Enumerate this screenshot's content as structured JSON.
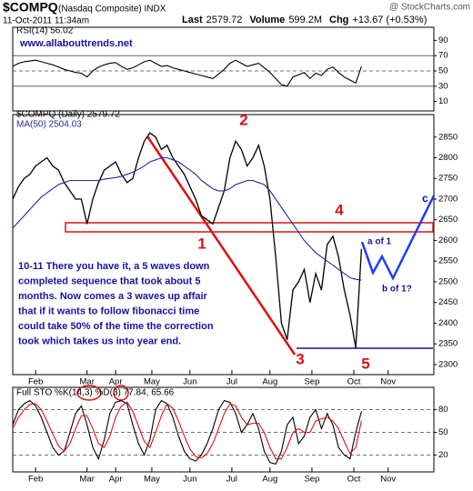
{
  "header": {
    "symbol": "$COMPQ",
    "name": "(Nasdaq Composite) INDX",
    "date": "11-Oct-2011 11:34am",
    "credit": "@ StockCharts.com",
    "stats": [
      {
        "label": "Last",
        "value": "2579.72"
      },
      {
        "label": "Volume",
        "value": "599.2M"
      },
      {
        "label": "Chg",
        "value": "+13.67 (+0.53%)"
      }
    ]
  },
  "annotations": {
    "url": "www.allabouttrends.net",
    "waves": [
      "1",
      "2",
      "3",
      "4",
      "5"
    ],
    "projection": [
      "a of 1",
      "b of 1?",
      "c"
    ],
    "commentary": [
      "10-11 There you have it, a 5 waves down",
      "completed sequence that took about 5",
      "months. Now comes a 3 waves up affair",
      "that if it wants to follow fibonacci time",
      "could take 50% of the time the correction",
      "took which takes us into year end."
    ]
  },
  "chart_data": [
    {
      "type": "line",
      "panel": "rsi",
      "legend": [
        "RSI(14) 56.02"
      ],
      "x": [
        0,
        3,
        6,
        9,
        12,
        15,
        18,
        21,
        24,
        27,
        30,
        33,
        36,
        39,
        42,
        45,
        48,
        51,
        54,
        57,
        60,
        63,
        66,
        69,
        72,
        75,
        78,
        81,
        84,
        87,
        90,
        93,
        96,
        99,
        102,
        105,
        108,
        111,
        114,
        117,
        120,
        123,
        126,
        129,
        132,
        135,
        138,
        141,
        144,
        147,
        150,
        153,
        156,
        159,
        162,
        165,
        168,
        171,
        174,
        177,
        180,
        183
      ],
      "xlim": [
        0,
        221
      ],
      "ylim": [
        0,
        100
      ],
      "yticks": [
        90,
        70,
        50,
        30,
        10
      ],
      "hlines": [
        70,
        50,
        30
      ],
      "series": [
        {
          "name": "RSI(14)",
          "color": "#000000",
          "values": [
            56,
            60,
            62,
            63,
            64,
            62,
            60,
            58,
            55,
            52,
            50,
            48,
            47,
            42,
            50,
            55,
            58,
            60,
            61,
            56,
            52,
            54,
            58,
            62,
            64,
            60,
            56,
            57,
            54,
            52,
            50,
            48,
            46,
            44,
            42,
            40,
            46,
            52,
            60,
            64,
            60,
            56,
            58,
            60,
            54,
            48,
            40,
            32,
            30,
            42,
            45,
            48,
            40,
            47,
            44,
            52,
            55,
            48,
            42,
            38,
            34,
            56.02
          ]
        }
      ]
    },
    {
      "type": "line",
      "panel": "price",
      "legend": [
        "$COMPQ (Daily) 2579.72",
        "MA(50) 2504.03"
      ],
      "x": [
        0,
        3,
        6,
        9,
        12,
        15,
        18,
        21,
        24,
        27,
        30,
        33,
        36,
        39,
        42,
        45,
        48,
        51,
        54,
        57,
        60,
        63,
        66,
        69,
        72,
        75,
        78,
        81,
        84,
        87,
        90,
        93,
        96,
        99,
        102,
        105,
        108,
        111,
        114,
        117,
        120,
        123,
        126,
        129,
        132,
        135,
        138,
        141,
        144,
        147,
        150,
        153,
        156,
        159,
        162,
        165,
        168,
        171,
        174,
        177,
        180,
        183
      ],
      "xlim": [
        0,
        221
      ],
      "xticks": [
        {
          "value": 12,
          "label": "Feb"
        },
        {
          "value": 39,
          "label": "Mar"
        },
        {
          "value": 54,
          "label": "Apr"
        },
        {
          "value": 73,
          "label": "May"
        },
        {
          "value": 93,
          "label": "Jun"
        },
        {
          "value": 115,
          "label": "Jul"
        },
        {
          "value": 135,
          "label": "Aug"
        },
        {
          "value": 157,
          "label": "Sep"
        },
        {
          "value": 179,
          "label": "Oct"
        },
        {
          "value": 197,
          "label": "Nov"
        }
      ],
      "ylim": [
        2280,
        2900
      ],
      "yticks": [
        2300,
        2350,
        2400,
        2450,
        2500,
        2550,
        2600,
        2650,
        2700,
        2750,
        2800,
        2850
      ],
      "series": [
        {
          "name": "$COMPQ",
          "color": "#000000",
          "values": [
            2700,
            2730,
            2750,
            2760,
            2780,
            2790,
            2800,
            2780,
            2770,
            2740,
            2720,
            2700,
            2700,
            2640,
            2700,
            2740,
            2770,
            2780,
            2790,
            2760,
            2740,
            2750,
            2800,
            2840,
            2860,
            2850,
            2820,
            2830,
            2800,
            2780,
            2760,
            2730,
            2700,
            2660,
            2650,
            2640,
            2680,
            2720,
            2800,
            2840,
            2820,
            2780,
            2800,
            2830,
            2780,
            2700,
            2560,
            2400,
            2360,
            2480,
            2500,
            2530,
            2450,
            2520,
            2480,
            2590,
            2610,
            2560,
            2480,
            2420,
            2340,
            2579.72
          ]
        },
        {
          "name": "MA(50)",
          "color": "#1e2a9c",
          "values": [
            2630,
            2645,
            2660,
            2675,
            2690,
            2705,
            2715,
            2725,
            2735,
            2740,
            2745,
            2745,
            2745,
            2745,
            2745,
            2745,
            2748,
            2750,
            2752,
            2755,
            2760,
            2765,
            2772,
            2780,
            2790,
            2795,
            2800,
            2800,
            2795,
            2790,
            2780,
            2770,
            2760,
            2745,
            2735,
            2725,
            2720,
            2720,
            2725,
            2735,
            2740,
            2745,
            2745,
            2740,
            2735,
            2720,
            2700,
            2680,
            2660,
            2640,
            2620,
            2600,
            2585,
            2570,
            2560,
            2550,
            2540,
            2530,
            2520,
            2510,
            2506,
            2504.03
          ]
        }
      ]
    },
    {
      "type": "line",
      "panel": "sto",
      "legend": [
        "Full STO %K(14,3) %D(3) 77.84, 65.66"
      ],
      "x": [
        0,
        3,
        6,
        9,
        12,
        15,
        18,
        21,
        24,
        27,
        30,
        33,
        36,
        39,
        42,
        45,
        48,
        51,
        54,
        57,
        60,
        63,
        66,
        69,
        72,
        75,
        78,
        81,
        84,
        87,
        90,
        93,
        96,
        99,
        102,
        105,
        108,
        111,
        114,
        117,
        120,
        123,
        126,
        129,
        132,
        135,
        138,
        141,
        144,
        147,
        150,
        153,
        156,
        159,
        162,
        165,
        168,
        171,
        174,
        177,
        180,
        183
      ],
      "xlim": [
        0,
        221
      ],
      "xticks": [
        {
          "value": 12,
          "label": "Feb"
        },
        {
          "value": 39,
          "label": "Mar"
        },
        {
          "value": 54,
          "label": "Apr"
        },
        {
          "value": 73,
          "label": "May"
        },
        {
          "value": 93,
          "label": "Jun"
        },
        {
          "value": 115,
          "label": "Jul"
        },
        {
          "value": 135,
          "label": "Aug"
        },
        {
          "value": 157,
          "label": "Sep"
        },
        {
          "value": 179,
          "label": "Oct"
        },
        {
          "value": 197,
          "label": "Nov"
        }
      ],
      "ylim": [
        0,
        100
      ],
      "yticks": [
        80,
        50,
        20
      ],
      "hlines": [
        80,
        50,
        20
      ],
      "series": [
        {
          "name": "%K",
          "color": "#000000",
          "values": [
            60,
            80,
            88,
            92,
            85,
            70,
            50,
            30,
            20,
            25,
            50,
            75,
            85,
            60,
            30,
            15,
            40,
            75,
            90,
            92,
            88,
            60,
            35,
            20,
            40,
            80,
            92,
            88,
            70,
            45,
            25,
            15,
            12,
            20,
            35,
            55,
            80,
            92,
            90,
            75,
            50,
            60,
            75,
            55,
            25,
            10,
            8,
            25,
            60,
            70,
            35,
            45,
            70,
            80,
            55,
            75,
            60,
            30,
            20,
            15,
            50,
            77.84
          ]
        },
        {
          "name": "%D",
          "color": "#e01010",
          "values": [
            55,
            70,
            80,
            87,
            88,
            80,
            65,
            48,
            32,
            25,
            35,
            55,
            72,
            72,
            55,
            35,
            30,
            45,
            70,
            85,
            90,
            78,
            58,
            38,
            30,
            50,
            72,
            88,
            82,
            65,
            45,
            28,
            18,
            16,
            22,
            35,
            55,
            75,
            88,
            85,
            70,
            60,
            62,
            62,
            50,
            30,
            15,
            15,
            30,
            50,
            55,
            50,
            50,
            65,
            68,
            70,
            65,
            55,
            38,
            22,
            30,
            65.66
          ]
        }
      ]
    }
  ]
}
